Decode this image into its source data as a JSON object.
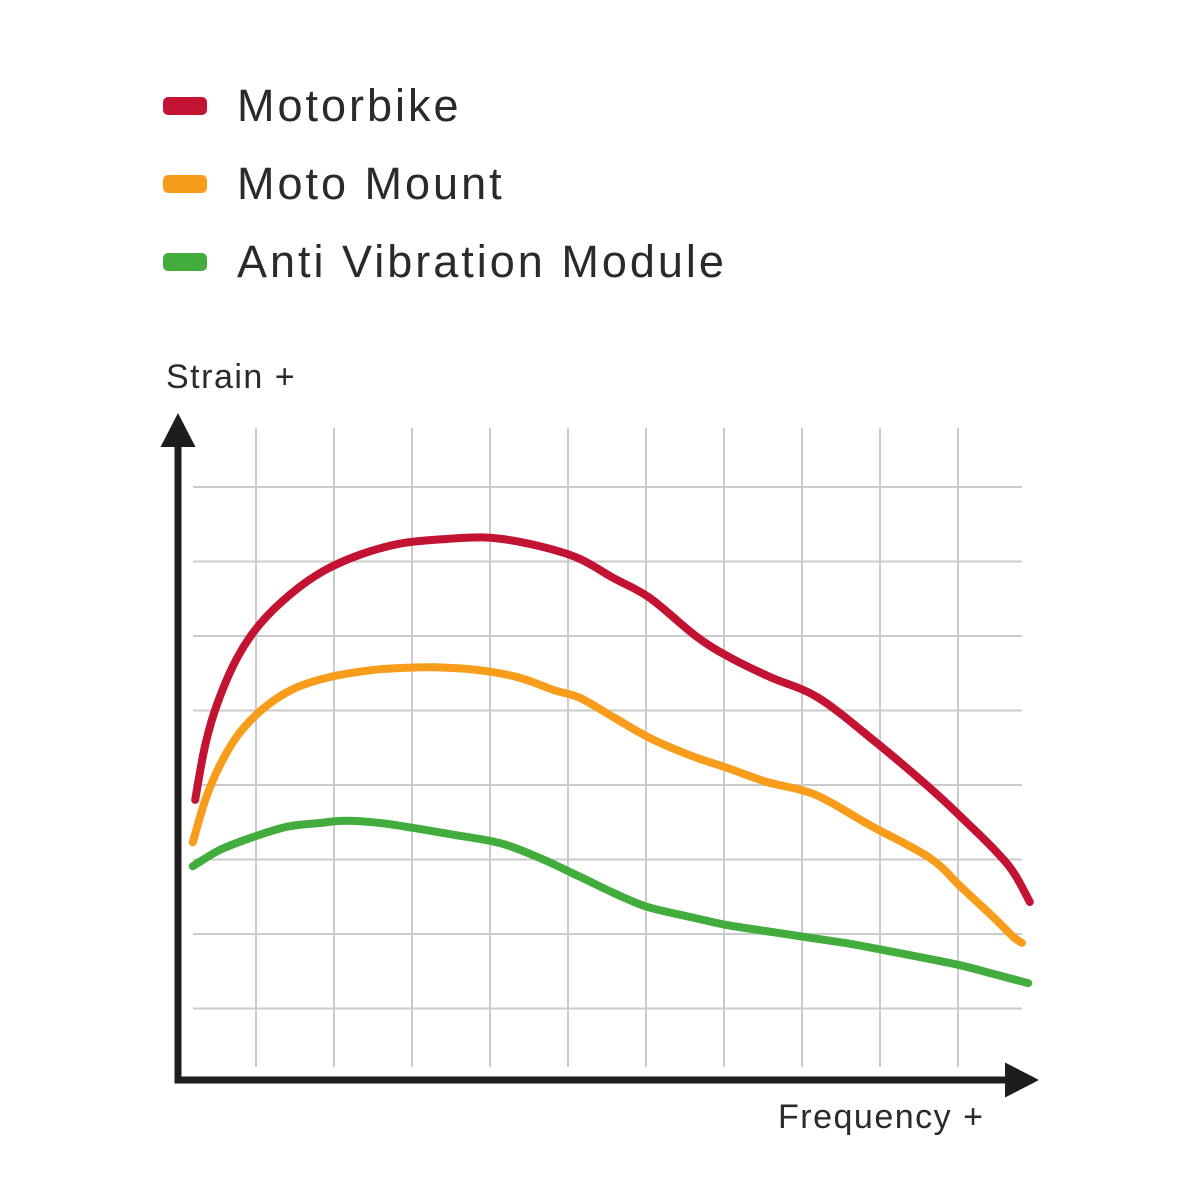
{
  "page": {
    "background": "#FFFFFF"
  },
  "axis_labels": {
    "y": "Strain +",
    "x": "Frequency +"
  },
  "legend": {
    "position": "top-left"
  },
  "chart_data": {
    "type": "line",
    "title": "",
    "xlabel": "Frequency +",
    "ylabel": "Strain +",
    "note": "Qualitative chart: no numeric ticks; point values are in grid-cell units measured from the axes origin",
    "x_axis": {
      "min": 0,
      "max": 11,
      "numeric_ticks": false
    },
    "y_axis": {
      "min": 0,
      "max": 8.8,
      "numeric_ticks": false
    },
    "grid": {
      "show": true,
      "vertical_lines_at": [
        1,
        2,
        3,
        4,
        5,
        6,
        7,
        8,
        9,
        10
      ],
      "horizontal_lines_at": [
        1,
        2,
        3,
        4,
        5,
        6,
        7,
        8
      ]
    },
    "colors": {
      "grid": "#CBCBCB",
      "axis": "#1D1D1B",
      "text": "#2B2A29"
    },
    "series": [
      {
        "name": "Motorbike",
        "color": "#C31332",
        "points": [
          [
            0.22,
            3.8
          ],
          [
            0.35,
            4.54
          ],
          [
            0.51,
            5.11
          ],
          [
            0.76,
            5.71
          ],
          [
            1.05,
            6.16
          ],
          [
            1.44,
            6.56
          ],
          [
            1.86,
            6.87
          ],
          [
            2.33,
            7.09
          ],
          [
            2.85,
            7.24
          ],
          [
            3.42,
            7.3
          ],
          [
            4.0,
            7.32
          ],
          [
            4.58,
            7.22
          ],
          [
            5.12,
            7.05
          ],
          [
            5.58,
            6.78
          ],
          [
            6.05,
            6.51
          ],
          [
            6.65,
            5.99
          ],
          [
            7.08,
            5.71
          ],
          [
            7.59,
            5.45
          ],
          [
            8.21,
            5.17
          ],
          [
            8.94,
            4.58
          ],
          [
            9.64,
            3.96
          ],
          [
            10.04,
            3.57
          ],
          [
            10.45,
            3.15
          ],
          [
            10.71,
            2.83
          ],
          [
            10.92,
            2.43
          ]
        ]
      },
      {
        "name": "Moto Mount",
        "color": "#F79D1B",
        "points": [
          [
            0.19,
            3.23
          ],
          [
            0.35,
            3.8
          ],
          [
            0.54,
            4.27
          ],
          [
            0.79,
            4.7
          ],
          [
            1.12,
            5.05
          ],
          [
            1.5,
            5.3
          ],
          [
            1.95,
            5.45
          ],
          [
            2.46,
            5.54
          ],
          [
            2.85,
            5.57
          ],
          [
            3.29,
            5.58
          ],
          [
            3.87,
            5.54
          ],
          [
            4.38,
            5.44
          ],
          [
            4.83,
            5.27
          ],
          [
            5.15,
            5.17
          ],
          [
            5.6,
            4.9
          ],
          [
            6.05,
            4.63
          ],
          [
            6.56,
            4.4
          ],
          [
            7.04,
            4.23
          ],
          [
            7.55,
            4.04
          ],
          [
            8.17,
            3.87
          ],
          [
            8.87,
            3.46
          ],
          [
            9.64,
            3.02
          ],
          [
            10.04,
            2.63
          ],
          [
            10.45,
            2.23
          ],
          [
            10.71,
            1.96
          ],
          [
            10.82,
            1.88
          ]
        ]
      },
      {
        "name": "Anti Vibration Module",
        "color": "#42AD3C",
        "points": [
          [
            0.19,
            2.91
          ],
          [
            0.54,
            3.13
          ],
          [
            0.96,
            3.3
          ],
          [
            1.4,
            3.44
          ],
          [
            1.82,
            3.49
          ],
          [
            2.14,
            3.52
          ],
          [
            2.59,
            3.49
          ],
          [
            3.04,
            3.42
          ],
          [
            3.49,
            3.34
          ],
          [
            4.13,
            3.22
          ],
          [
            4.64,
            3.02
          ],
          [
            5.13,
            2.78
          ],
          [
            5.67,
            2.51
          ],
          [
            6.03,
            2.36
          ],
          [
            6.56,
            2.23
          ],
          [
            7.04,
            2.12
          ],
          [
            7.53,
            2.04
          ],
          [
            8.04,
            1.96
          ],
          [
            8.55,
            1.88
          ],
          [
            8.97,
            1.8
          ],
          [
            9.51,
            1.69
          ],
          [
            10.03,
            1.58
          ],
          [
            10.47,
            1.46
          ],
          [
            10.9,
            1.34
          ]
        ]
      }
    ]
  }
}
